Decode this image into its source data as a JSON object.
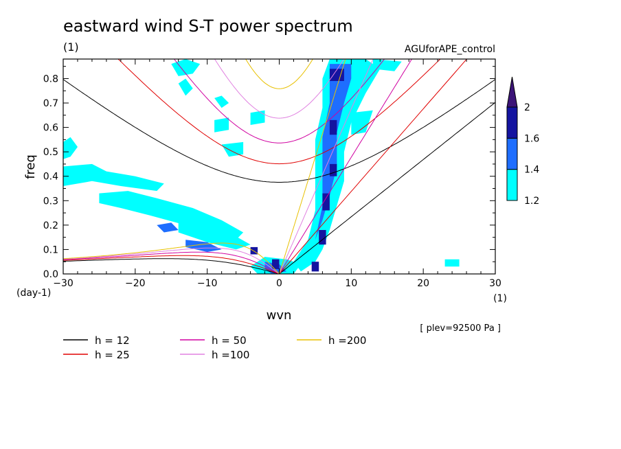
{
  "chart_data": {
    "type": "contour",
    "title": "eastward wind S-T power spectrum",
    "subtitle_left": "(1)",
    "subtitle_right": "AGUforAPE_control",
    "xlabel": "wvn",
    "xunit": "(1)",
    "ylabel": "freq",
    "yunit": "(day-1)",
    "xlim": [
      -30,
      30
    ],
    "ylim": [
      0,
      0.88
    ],
    "xticks": [
      -30,
      -20,
      -10,
      0,
      10,
      20,
      30
    ],
    "yticks": [
      0.0,
      0.1,
      0.2,
      0.3,
      0.4,
      0.5,
      0.6,
      0.7,
      0.8
    ],
    "annotation": "[ plev=92500 Pa ]",
    "colorbar": {
      "levels": [
        "1.2",
        "1.4",
        "1.6",
        "2"
      ],
      "colors": [
        "#00ffff",
        "#1e6eff",
        "#1414a0",
        "#3c1478"
      ]
    },
    "dispersion_curves": [
      {
        "label": "h = 12",
        "h": 12,
        "color": "#000000"
      },
      {
        "label": "h = 25",
        "h": 25,
        "color": "#e00000"
      },
      {
        "label": "h = 50",
        "h": 50,
        "color": "#d000a0"
      },
      {
        "label": "h =100",
        "h": 100,
        "color": "#e080e0"
      },
      {
        "label": "h =200",
        "h": 200,
        "color": "#e8c000"
      }
    ],
    "shaded_regions": [
      {
        "level": 1,
        "pts": [
          [
            -30,
            0.54
          ],
          [
            -29,
            0.56
          ],
          [
            -28,
            0.52
          ],
          [
            -29,
            0.48
          ],
          [
            -30,
            0.47
          ]
        ]
      },
      {
        "level": 1,
        "pts": [
          [
            -30,
            0.44
          ],
          [
            -26,
            0.45
          ],
          [
            -24,
            0.42
          ],
          [
            -20,
            0.4
          ],
          [
            -16,
            0.37
          ],
          [
            -17,
            0.34
          ],
          [
            -22,
            0.36
          ],
          [
            -26,
            0.38
          ],
          [
            -30,
            0.36
          ]
        ]
      },
      {
        "level": 1,
        "pts": [
          [
            -25,
            0.33
          ],
          [
            -21,
            0.34
          ],
          [
            -17,
            0.31
          ],
          [
            -12,
            0.27
          ],
          [
            -8,
            0.22
          ],
          [
            -5,
            0.17
          ],
          [
            -6,
            0.14
          ],
          [
            -9,
            0.16
          ],
          [
            -13,
            0.2
          ],
          [
            -18,
            0.24
          ],
          [
            -22,
            0.27
          ],
          [
            -25,
            0.29
          ]
        ]
      },
      {
        "level": 1,
        "pts": [
          [
            -14,
            0.22
          ],
          [
            -10,
            0.22
          ],
          [
            -7,
            0.17
          ],
          [
            -4,
            0.12
          ],
          [
            -6,
            0.1
          ],
          [
            -10,
            0.13
          ],
          [
            -14,
            0.17
          ]
        ]
      },
      {
        "level": 1,
        "pts": [
          [
            -15,
            0.86
          ],
          [
            -13,
            0.88
          ],
          [
            -11,
            0.86
          ],
          [
            -12,
            0.82
          ],
          [
            -14,
            0.81
          ]
        ]
      },
      {
        "level": 1,
        "pts": [
          [
            -14,
            0.78
          ],
          [
            -13,
            0.8
          ],
          [
            -12,
            0.76
          ],
          [
            -13,
            0.73
          ]
        ]
      },
      {
        "level": 1,
        "pts": [
          [
            -9,
            0.72
          ],
          [
            -8,
            0.73
          ],
          [
            -7,
            0.7
          ],
          [
            -8,
            0.68
          ]
        ]
      },
      {
        "level": 1,
        "pts": [
          [
            -9,
            0.63
          ],
          [
            -7,
            0.64
          ],
          [
            -7,
            0.59
          ],
          [
            -9,
            0.58
          ]
        ]
      },
      {
        "level": 1,
        "pts": [
          [
            -8,
            0.53
          ],
          [
            -5,
            0.54
          ],
          [
            -5,
            0.49
          ],
          [
            -7,
            0.48
          ]
        ]
      },
      {
        "level": 1,
        "pts": [
          [
            -4,
            0.66
          ],
          [
            -2,
            0.67
          ],
          [
            -2,
            0.62
          ],
          [
            -4,
            0.61
          ]
        ]
      },
      {
        "level": 1,
        "pts": [
          [
            -2,
            0.07
          ],
          [
            1,
            0.06
          ],
          [
            3,
            0.04
          ],
          [
            2,
            0.0
          ],
          [
            -3,
            0.0
          ],
          [
            -4,
            0.03
          ]
        ]
      },
      {
        "level": 1,
        "pts": [
          [
            7,
            0.88
          ],
          [
            12,
            0.88
          ],
          [
            14,
            0.84
          ],
          [
            12,
            0.74
          ],
          [
            10,
            0.62
          ],
          [
            9,
            0.5
          ],
          [
            9,
            0.38
          ],
          [
            8,
            0.28
          ],
          [
            7,
            0.18
          ],
          [
            6,
            0.1
          ],
          [
            5,
            0.05
          ],
          [
            3,
            0.01
          ],
          [
            2,
            0.05
          ],
          [
            4,
            0.14
          ],
          [
            5,
            0.26
          ],
          [
            5,
            0.4
          ],
          [
            5,
            0.55
          ],
          [
            6,
            0.68
          ],
          [
            6,
            0.8
          ]
        ]
      },
      {
        "level": 1,
        "pts": [
          [
            10,
            0.66
          ],
          [
            13,
            0.67
          ],
          [
            12,
            0.58
          ],
          [
            10,
            0.57
          ]
        ]
      },
      {
        "level": 1,
        "pts": [
          [
            13,
            0.88
          ],
          [
            17,
            0.87
          ],
          [
            16,
            0.83
          ],
          [
            13,
            0.84
          ]
        ]
      },
      {
        "level": 1,
        "pts": [
          [
            23,
            0.06
          ],
          [
            25,
            0.06
          ],
          [
            25,
            0.03
          ],
          [
            23,
            0.03
          ]
        ]
      },
      {
        "level": 2,
        "pts": [
          [
            -13,
            0.14
          ],
          [
            -10,
            0.13
          ],
          [
            -8,
            0.1
          ],
          [
            -10,
            0.09
          ],
          [
            -13,
            0.11
          ]
        ]
      },
      {
        "level": 2,
        "pts": [
          [
            -17,
            0.2
          ],
          [
            -15,
            0.21
          ],
          [
            -14,
            0.18
          ],
          [
            -16,
            0.17
          ]
        ]
      },
      {
        "level": 2,
        "pts": [
          [
            -2,
            0.05
          ],
          [
            0,
            0.04
          ],
          [
            1,
            0.01
          ],
          [
            -1,
            0.0
          ],
          [
            -2,
            0.02
          ]
        ]
      },
      {
        "level": 2,
        "pts": [
          [
            7,
            0.86
          ],
          [
            10,
            0.86
          ],
          [
            10,
            0.8
          ],
          [
            9,
            0.7
          ],
          [
            8,
            0.58
          ],
          [
            8,
            0.44
          ],
          [
            7,
            0.32
          ],
          [
            6,
            0.22
          ],
          [
            5,
            0.14
          ],
          [
            6,
            0.28
          ],
          [
            6,
            0.42
          ],
          [
            6,
            0.56
          ],
          [
            7,
            0.7
          ]
        ]
      },
      {
        "level": 3,
        "pts": [
          [
            -4,
            0.11
          ],
          [
            -3,
            0.11
          ],
          [
            -3,
            0.08
          ],
          [
            -4,
            0.08
          ]
        ]
      },
      {
        "level": 3,
        "pts": [
          [
            -1,
            0.06
          ],
          [
            0,
            0.06
          ],
          [
            0,
            0.02
          ],
          [
            -1,
            0.02
          ]
        ]
      },
      {
        "level": 3,
        "pts": [
          [
            7,
            0.84
          ],
          [
            9,
            0.84
          ],
          [
            9,
            0.79
          ],
          [
            7,
            0.79
          ]
        ]
      },
      {
        "level": 3,
        "pts": [
          [
            7,
            0.63
          ],
          [
            8,
            0.63
          ],
          [
            8,
            0.57
          ],
          [
            7,
            0.57
          ]
        ]
      },
      {
        "level": 3,
        "pts": [
          [
            7,
            0.45
          ],
          [
            8,
            0.45
          ],
          [
            8,
            0.4
          ],
          [
            7,
            0.4
          ]
        ]
      },
      {
        "level": 3,
        "pts": [
          [
            6,
            0.33
          ],
          [
            7,
            0.33
          ],
          [
            7,
            0.26
          ],
          [
            6,
            0.26
          ]
        ]
      },
      {
        "level": 3,
        "pts": [
          [
            5.5,
            0.18
          ],
          [
            6.5,
            0.18
          ],
          [
            6.5,
            0.12
          ],
          [
            5.5,
            0.12
          ]
        ]
      },
      {
        "level": 3,
        "pts": [
          [
            4.5,
            0.05
          ],
          [
            5.5,
            0.05
          ],
          [
            5.5,
            0.01
          ],
          [
            4.5,
            0.01
          ]
        ]
      }
    ]
  }
}
